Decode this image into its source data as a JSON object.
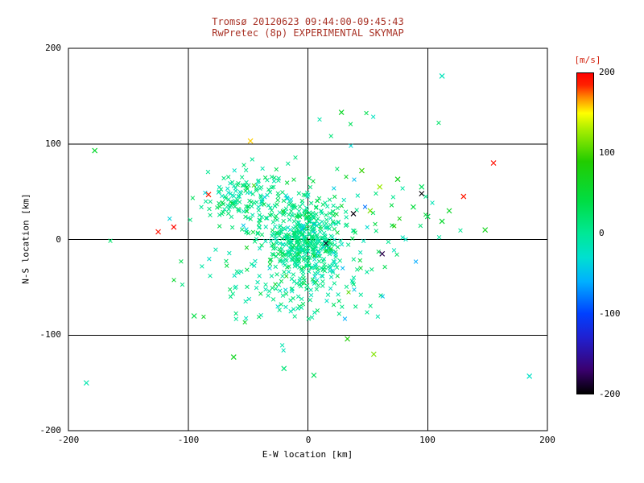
{
  "colors": {
    "background": "#ffffff",
    "axis": "#000000",
    "title": "#a93226",
    "colorbar_label": "#d21f0a"
  },
  "chart_data": {
    "type": "scatter",
    "title": "Tromsø 20120623 09:44:00-09:45:43",
    "subtitle": "RwPretec (8p) EXPERIMENTAL SKYMAP",
    "xlabel": "E-W location [km]",
    "ylabel": "N-S location [km]",
    "xlim": [
      -200,
      200
    ],
    "ylim": [
      -200,
      200
    ],
    "xticks": [
      -200,
      -100,
      0,
      100,
      200
    ],
    "yticks": [
      -200,
      -100,
      0,
      100,
      200
    ],
    "xtick_labels": [
      "-200",
      "-100",
      "0",
      "100",
      "200"
    ],
    "ytick_labels": [
      "200",
      "100",
      "0",
      "-100",
      "-200"
    ],
    "grid": true,
    "marker": "x",
    "colorbar": {
      "label": "[m/s]",
      "range": [
        -200,
        200
      ],
      "tick_labels": [
        "200",
        "100",
        "0",
        "-100",
        "-200"
      ],
      "stops": [
        {
          "v": -200,
          "c": "#000000"
        },
        {
          "v": -170,
          "c": "#3a0070"
        },
        {
          "v": -130,
          "c": "#2020d0"
        },
        {
          "v": -100,
          "c": "#0040ff"
        },
        {
          "v": -60,
          "c": "#00b0ff"
        },
        {
          "v": -30,
          "c": "#00e0d0"
        },
        {
          "v": 0,
          "c": "#00e896"
        },
        {
          "v": 40,
          "c": "#00dd44"
        },
        {
          "v": 90,
          "c": "#22cc00"
        },
        {
          "v": 130,
          "c": "#aaee00"
        },
        {
          "v": 150,
          "c": "#ffff00"
        },
        {
          "v": 170,
          "c": "#ff8800"
        },
        {
          "v": 185,
          "c": "#ff2200"
        },
        {
          "v": 200,
          "c": "#ff0000"
        }
      ]
    },
    "point_model": {
      "note": "dense meteor-echo cloud approximated by gaussian clusters (seeded PRNG), values in m/s",
      "seed": 20120623,
      "clusters": [
        {
          "cx": -3,
          "cy": 2,
          "sx": 16,
          "sy": 20,
          "n": 420,
          "v_mean": 5,
          "v_sd": 18
        },
        {
          "cx": -50,
          "cy": 42,
          "sx": 20,
          "sy": 16,
          "n": 150,
          "v_mean": 10,
          "v_sd": 20
        },
        {
          "cx": -15,
          "cy": -45,
          "sx": 28,
          "sy": 22,
          "n": 110,
          "v_mean": 2,
          "v_sd": 15
        },
        {
          "cx": 5,
          "cy": 5,
          "sx": 55,
          "sy": 48,
          "n": 160,
          "v_mean": 8,
          "v_sd": 30
        }
      ]
    },
    "outliers": [
      [
        -178,
        93,
        55
      ],
      [
        -125,
        8,
        192
      ],
      [
        -112,
        13,
        196
      ],
      [
        -83,
        47,
        188
      ],
      [
        155,
        80,
        194
      ],
      [
        130,
        45,
        190
      ],
      [
        -48,
        103,
        158
      ],
      [
        28,
        133,
        60
      ],
      [
        95,
        48,
        -198
      ],
      [
        38,
        27,
        -196
      ],
      [
        15,
        -4,
        -192
      ],
      [
        62,
        -15,
        -180
      ],
      [
        52,
        30,
        115
      ],
      [
        60,
        55,
        125
      ],
      [
        45,
        72,
        95
      ],
      [
        75,
        63,
        70
      ],
      [
        88,
        34,
        45
      ],
      [
        100,
        24,
        35
      ],
      [
        112,
        19,
        55
      ],
      [
        148,
        10,
        70
      ],
      [
        55,
        -120,
        118
      ],
      [
        33,
        -104,
        85
      ],
      [
        -62,
        -123,
        65
      ],
      [
        -95,
        -80,
        40
      ],
      [
        185,
        -143,
        -25
      ],
      [
        -185,
        -150,
        -12
      ],
      [
        112,
        171,
        -18
      ],
      [
        95,
        55,
        30
      ],
      [
        118,
        30,
        60
      ],
      [
        5,
        -142,
        30
      ],
      [
        -20,
        -135,
        15
      ]
    ]
  }
}
